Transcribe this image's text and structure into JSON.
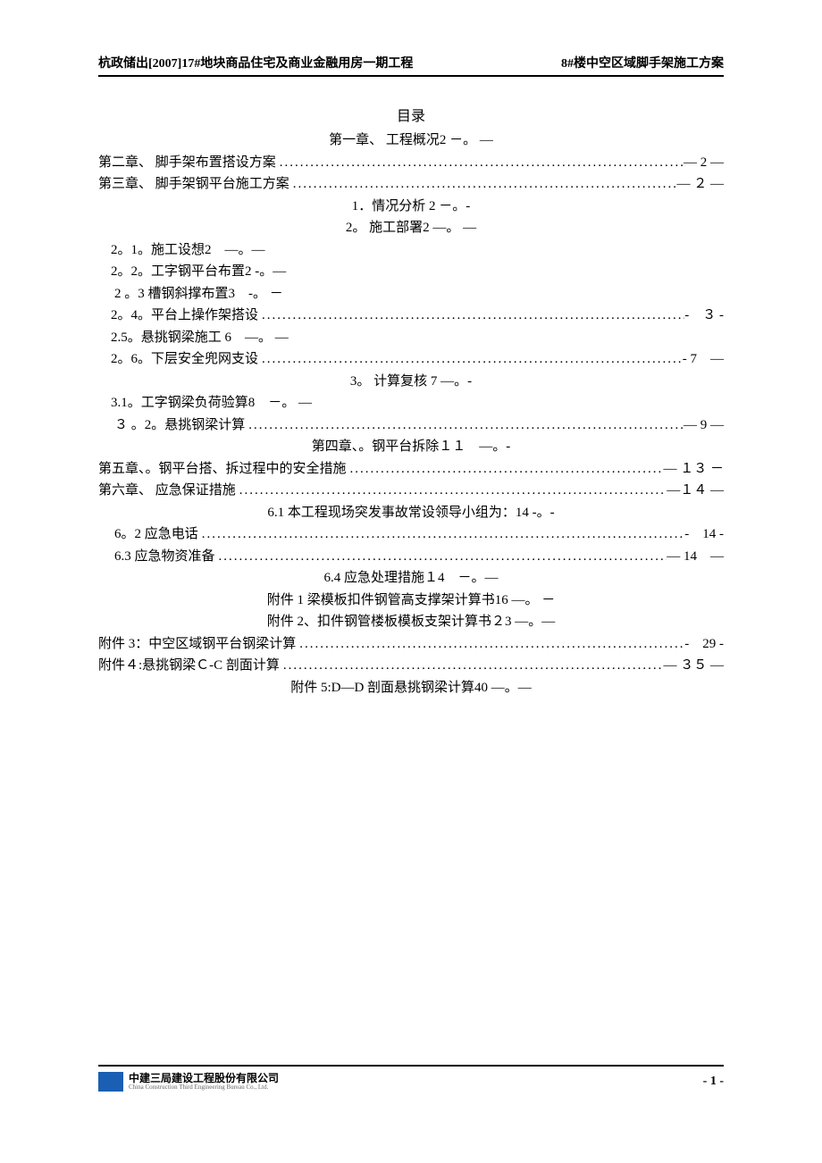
{
  "header": {
    "left": "杭政储出[2007]17#地块商品住宅及商业金融用房一期工程",
    "right": "8#楼中空区域脚手架施工方案"
  },
  "title": "目录",
  "toc": [
    {
      "type": "center",
      "text": "第一章、 工程概况2 －。 —"
    },
    {
      "type": "dotted",
      "text": "第二章、 脚手架布置搭设方案",
      "page": "— 2 —"
    },
    {
      "type": "dotted",
      "text": "第三章、 脚手架钢平台施工方案",
      "page": "— ２ —"
    },
    {
      "type": "center",
      "text": "1．情况分析 2 －。-"
    },
    {
      "type": "center",
      "text": "2。 施工部署2 —。 —"
    },
    {
      "type": "plain",
      "indent": 1,
      "text": "2。1。施工设想2　—。—"
    },
    {
      "type": "plain",
      "indent": 1,
      "text": "2。2。工字钢平台布置2 -。—"
    },
    {
      "type": "plain",
      "indent": 2,
      "text": "2 。3 槽钢斜撑布置3　-。 －"
    },
    {
      "type": "dotted",
      "indent": 1,
      "text": "2。4。平台上操作架搭设",
      "page": "-　３ -"
    },
    {
      "type": "plain",
      "indent": 1,
      "text": "2.5。悬挑钢梁施工 6　—。 —"
    },
    {
      "type": "dotted",
      "indent": 1,
      "text": "2。6。下层安全兜网支设",
      "page": "- 7　—"
    },
    {
      "type": "center",
      "text": "3。 计算复核 7 —。-"
    },
    {
      "type": "plain",
      "indent": 1,
      "text": "3.1。工字钢梁负荷验算8　－。 —"
    },
    {
      "type": "dotted",
      "indent": 2,
      "text": "３ 。2。悬挑钢梁计算",
      "page": "— 9 —"
    },
    {
      "type": "center",
      "text": "第四章、。钢平台拆除１１　—。-"
    },
    {
      "type": "dotted",
      "text": "第五章、。钢平台搭、拆过程中的安全措施",
      "page": "— １３ －"
    },
    {
      "type": "dotted",
      "text": "第六章、 应急保证措施",
      "page": "—１４ —"
    },
    {
      "type": "center",
      "text": "6.1 本工程现场突发事故常设领导小组为：14 -。-"
    },
    {
      "type": "dotted",
      "indent": 2,
      "text": "6。2 应急电话",
      "page": "-　14 -"
    },
    {
      "type": "dotted",
      "indent": 2,
      "text": "6.3 应急物资准备",
      "page": "— 14　—"
    },
    {
      "type": "center",
      "text": "6.4 应急处理措施１4　－。—"
    },
    {
      "type": "center",
      "text": "附件 1 梁模板扣件钢管高支撑架计算书16 —。 －"
    },
    {
      "type": "center",
      "text": "附件 2、扣件钢管楼板模板支架计算书２3 —。—"
    },
    {
      "type": "dotted",
      "text": "附件 3：中空区域钢平台钢梁计算",
      "page": "-　29 -"
    },
    {
      "type": "dotted",
      "text": "附件４:悬挑钢梁Ｃ-C 剖面计算",
      "page": "— ３５ —"
    },
    {
      "type": "center",
      "text": "附件 5:D—D 剖面悬挑钢梁计算40 —。—"
    }
  ],
  "footer": {
    "company_cn": "中建三局建设工程股份有限公司",
    "company_en": "China Construction Third Engineering Bureau Co., Ltd.",
    "page": "- 1 -",
    "logo_color": "#1a5fb4"
  }
}
